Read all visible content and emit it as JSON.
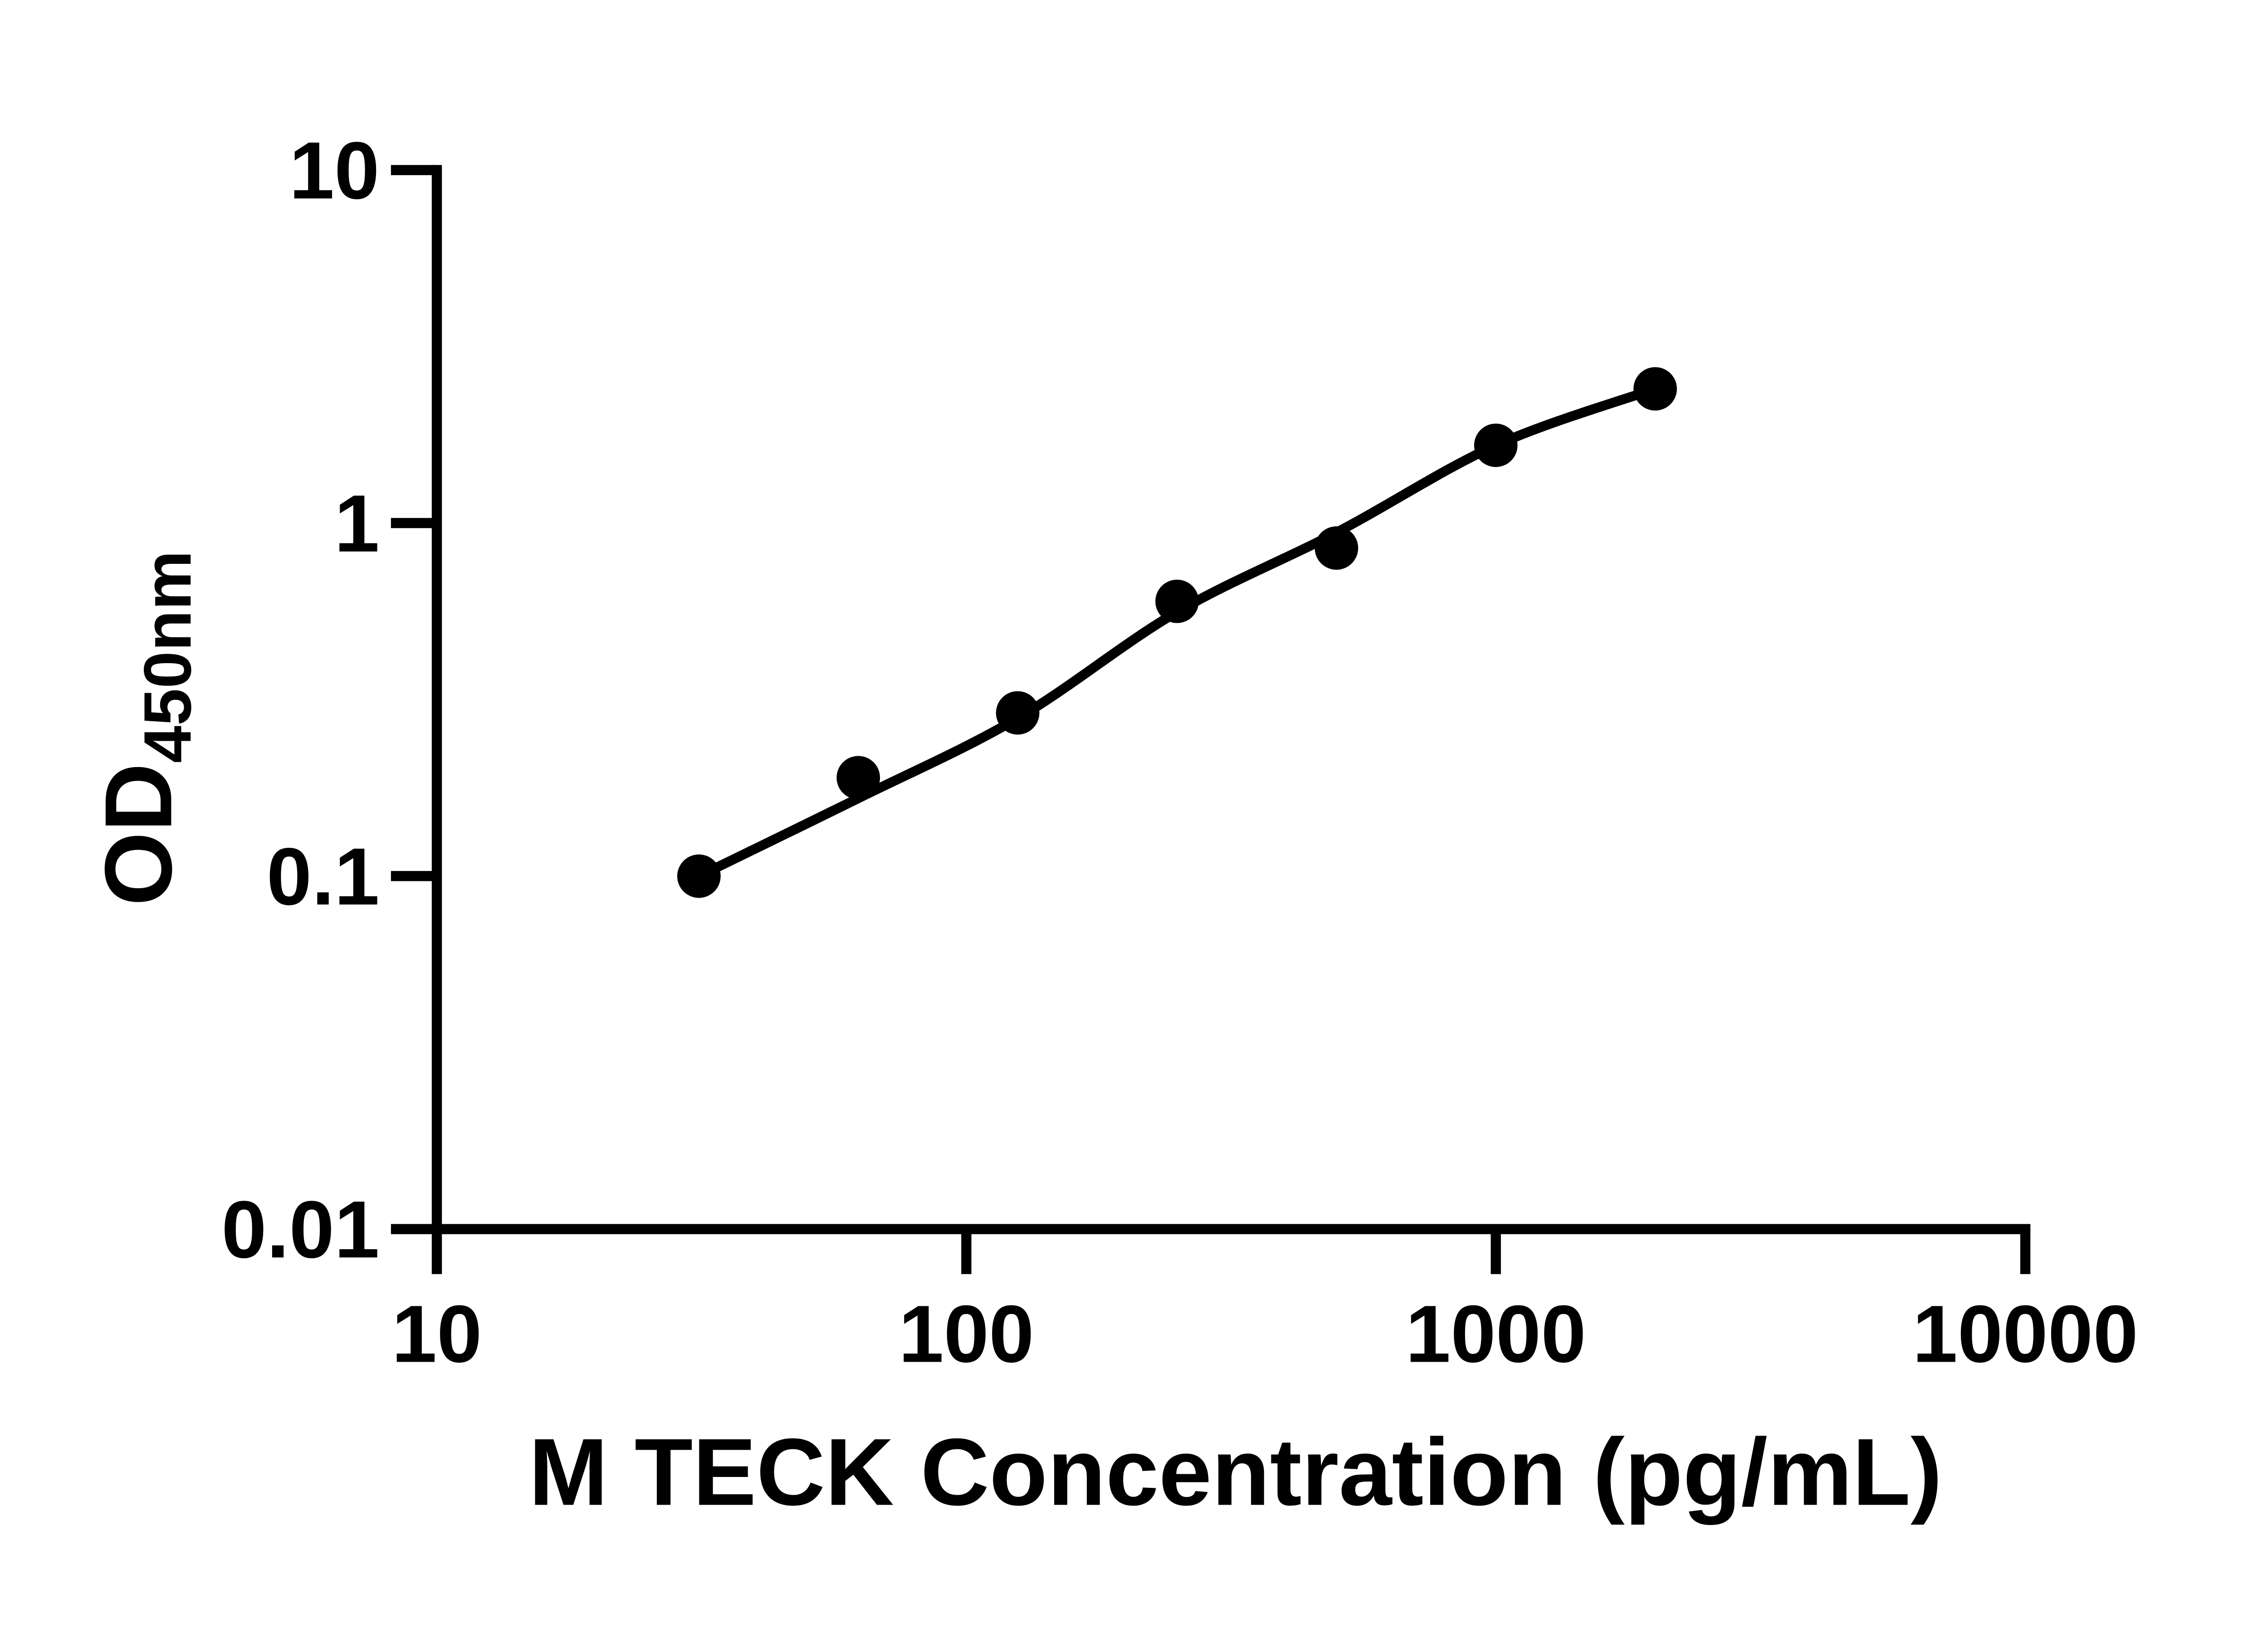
{
  "figure": {
    "background": "#ffffff",
    "ink_color": "#000000"
  },
  "chart_data": {
    "type": "scatter",
    "title": "",
    "xlabel": "M TECK Concentration (pg/mL)",
    "ylabel_main": "OD",
    "ylabel_subscript": "450nm",
    "x_scale": "log10",
    "y_scale": "log10",
    "xlim": [
      10,
      10000
    ],
    "ylim": [
      0.01,
      10
    ],
    "x_tick_labels": [
      "10",
      "100",
      "1000",
      "10000"
    ],
    "x_tick_values": [
      10,
      100,
      1000,
      10000
    ],
    "y_tick_labels": [
      "10",
      "1",
      "0.1",
      "0.01"
    ],
    "y_tick_values": [
      10,
      1,
      0.1,
      0.01
    ],
    "grid": false,
    "legend": null,
    "series": [
      {
        "name": "standard-points",
        "type": "scatter",
        "marker": "filled-circle",
        "color": "#000000",
        "x": [
          31.25,
          62.5,
          125,
          250,
          500,
          1000,
          2000
        ],
        "y": [
          0.1,
          0.19,
          0.29,
          0.6,
          0.85,
          1.66,
          2.4
        ]
      },
      {
        "name": "fit-curve",
        "type": "line",
        "color": "#000000",
        "x": [
          31.25,
          62.5,
          125,
          250,
          500,
          1000,
          2000
        ],
        "y": [
          0.1,
          0.166,
          0.28,
          0.56,
          0.94,
          1.66,
          2.4
        ]
      }
    ]
  }
}
